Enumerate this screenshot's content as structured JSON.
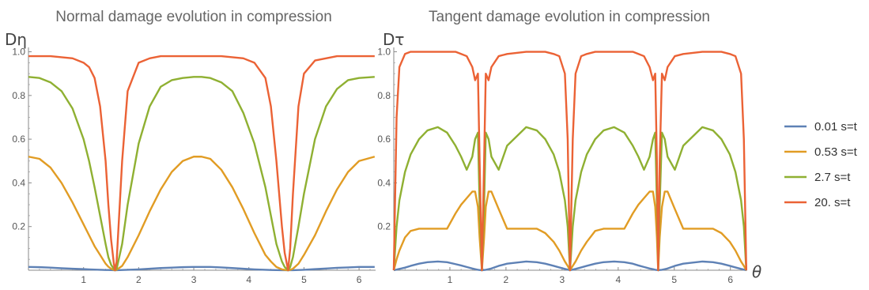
{
  "chart_data": [
    {
      "type": "line",
      "title": "Normal damage evolution in compression",
      "ylabel": "Dη",
      "xlabel": "",
      "xlim": [
        0,
        6.3
      ],
      "ylim": [
        0,
        1.02
      ],
      "xticks": [
        "1",
        "2",
        "3",
        "4",
        "5",
        "6"
      ],
      "yticks": [
        "0.2",
        "0.4",
        "0.6",
        "0.8",
        "1.0"
      ],
      "x": [
        0,
        0.2,
        0.4,
        0.6,
        0.8,
        1.0,
        1.1,
        1.2,
        1.3,
        1.4,
        1.45,
        1.5,
        1.55,
        1.5708,
        1.6,
        1.7,
        1.8,
        2.0,
        2.2,
        2.4,
        2.6,
        2.8,
        3.0,
        3.1416,
        3.3,
        3.5,
        3.7,
        3.9,
        4.1,
        4.3,
        4.4,
        4.5,
        4.6,
        4.65,
        4.7124,
        4.75,
        4.8,
        4.9,
        5.0,
        5.2,
        5.4,
        5.6,
        5.8,
        6.0,
        6.2832
      ],
      "series": [
        {
          "name": "0.01 s=t",
          "color": "#5e81b5",
          "values": [
            0.015,
            0.014,
            0.012,
            0.009,
            0.007,
            0.005,
            0.004,
            0.003,
            0.002,
            0.001,
            0.001,
            0.0005,
            0.0001,
            0,
            0.0001,
            0.001,
            0.002,
            0.004,
            0.007,
            0.01,
            0.012,
            0.014,
            0.015,
            0.015,
            0.015,
            0.013,
            0.01,
            0.007,
            0.004,
            0.002,
            0.001,
            0.0005,
            0.0002,
            0.0001,
            0,
            0.0001,
            0.0003,
            0.001,
            0.002,
            0.005,
            0.008,
            0.011,
            0.013,
            0.015,
            0.015
          ]
        },
        {
          "name": "0.53 s=t",
          "color": "#e19c24",
          "values": [
            0.52,
            0.51,
            0.47,
            0.4,
            0.31,
            0.21,
            0.16,
            0.11,
            0.07,
            0.03,
            0.016,
            0.007,
            0.002,
            0,
            0.002,
            0.02,
            0.06,
            0.16,
            0.27,
            0.37,
            0.45,
            0.5,
            0.52,
            0.52,
            0.51,
            0.46,
            0.38,
            0.28,
            0.17,
            0.07,
            0.04,
            0.015,
            0.004,
            0.002,
            0,
            0.002,
            0.007,
            0.03,
            0.07,
            0.16,
            0.27,
            0.37,
            0.45,
            0.5,
            0.52
          ]
        },
        {
          "name": "2.7 s=t",
          "color": "#8fb032",
          "values": [
            0.885,
            0.88,
            0.86,
            0.82,
            0.74,
            0.6,
            0.5,
            0.38,
            0.25,
            0.12,
            0.06,
            0.025,
            0.006,
            0,
            0.006,
            0.12,
            0.3,
            0.58,
            0.75,
            0.84,
            0.87,
            0.88,
            0.885,
            0.885,
            0.88,
            0.86,
            0.82,
            0.72,
            0.58,
            0.38,
            0.25,
            0.12,
            0.04,
            0.015,
            0,
            0.015,
            0.06,
            0.2,
            0.35,
            0.6,
            0.75,
            0.83,
            0.87,
            0.88,
            0.885
          ]
        },
        {
          "name": "20. s=t",
          "color": "#eb6235",
          "values": [
            0.98,
            0.98,
            0.98,
            0.975,
            0.97,
            0.95,
            0.93,
            0.88,
            0.75,
            0.5,
            0.3,
            0.14,
            0.03,
            0,
            0.04,
            0.5,
            0.82,
            0.95,
            0.97,
            0.98,
            0.98,
            0.98,
            0.98,
            0.98,
            0.98,
            0.98,
            0.975,
            0.97,
            0.95,
            0.88,
            0.75,
            0.5,
            0.2,
            0.08,
            0,
            0.1,
            0.35,
            0.75,
            0.9,
            0.96,
            0.97,
            0.98,
            0.98,
            0.98,
            0.98
          ]
        }
      ]
    },
    {
      "type": "line",
      "title": "Tangent damage evolution in compression",
      "ylabel": "Dτ",
      "xlabel": "θ",
      "xlim": [
        0,
        6.3
      ],
      "ylim": [
        0,
        1.02
      ],
      "xticks": [
        "1",
        "2",
        "3",
        "4",
        "5",
        "6"
      ],
      "yticks": [
        "0.2",
        "0.4",
        "0.6",
        "0.8",
        "1.0"
      ],
      "x": [
        0,
        0.05,
        0.1,
        0.2,
        0.3,
        0.45,
        0.6,
        0.7854,
        0.95,
        1.1,
        1.2,
        1.3,
        1.4,
        1.45,
        1.5,
        1.53,
        1.5708,
        1.61,
        1.64,
        1.69,
        1.74,
        1.87,
        2.02,
        2.36,
        2.55,
        2.7,
        2.85,
        2.95,
        3.05,
        3.1,
        3.1416,
        3.19,
        3.24,
        3.34,
        3.44,
        3.59,
        3.74,
        3.927,
        4.11,
        4.26,
        4.36,
        4.46,
        4.56,
        4.62,
        4.66,
        4.69,
        4.7124,
        4.74,
        4.78,
        4.83,
        4.88,
        5.01,
        5.16,
        5.5,
        5.69,
        5.84,
        5.99,
        6.09,
        6.19,
        6.24,
        6.2832
      ],
      "series": [
        {
          "name": "0.01 s=t",
          "color": "#5e81b5",
          "values": [
            0,
            0.003,
            0.006,
            0.012,
            0.02,
            0.03,
            0.037,
            0.04,
            0.037,
            0.028,
            0.022,
            0.015,
            0.008,
            0.005,
            0.002,
            0.001,
            0,
            0.001,
            0.002,
            0.005,
            0.008,
            0.02,
            0.03,
            0.04,
            0.037,
            0.03,
            0.02,
            0.013,
            0.006,
            0.003,
            0,
            0.003,
            0.006,
            0.013,
            0.02,
            0.03,
            0.037,
            0.04,
            0.037,
            0.03,
            0.022,
            0.015,
            0.008,
            0.005,
            0.002,
            0.001,
            0,
            0.001,
            0.002,
            0.005,
            0.008,
            0.02,
            0.03,
            0.04,
            0.037,
            0.03,
            0.02,
            0.013,
            0.006,
            0.003,
            0
          ]
        },
        {
          "name": "0.53 s=t",
          "color": "#e19c24",
          "values": [
            0,
            0.05,
            0.09,
            0.15,
            0.18,
            0.19,
            0.19,
            0.19,
            0.19,
            0.26,
            0.3,
            0.33,
            0.36,
            0.36,
            0.29,
            0.15,
            0,
            0.15,
            0.29,
            0.36,
            0.36,
            0.28,
            0.19,
            0.19,
            0.19,
            0.17,
            0.13,
            0.09,
            0.04,
            0.02,
            0,
            0.02,
            0.04,
            0.09,
            0.13,
            0.18,
            0.19,
            0.19,
            0.19,
            0.26,
            0.3,
            0.33,
            0.36,
            0.36,
            0.29,
            0.15,
            0,
            0.15,
            0.29,
            0.36,
            0.36,
            0.28,
            0.19,
            0.19,
            0.19,
            0.17,
            0.13,
            0.09,
            0.04,
            0.02,
            0
          ]
        },
        {
          "name": "2.7 s=t",
          "color": "#8fb032",
          "values": [
            0,
            0.2,
            0.32,
            0.45,
            0.53,
            0.6,
            0.64,
            0.655,
            0.63,
            0.57,
            0.52,
            0.46,
            0.52,
            0.6,
            0.63,
            0.3,
            0,
            0.3,
            0.63,
            0.6,
            0.52,
            0.46,
            0.57,
            0.655,
            0.64,
            0.6,
            0.53,
            0.45,
            0.32,
            0.2,
            0,
            0.2,
            0.32,
            0.45,
            0.53,
            0.6,
            0.64,
            0.655,
            0.63,
            0.57,
            0.52,
            0.46,
            0.52,
            0.6,
            0.63,
            0.3,
            0,
            0.3,
            0.63,
            0.6,
            0.52,
            0.46,
            0.57,
            0.655,
            0.64,
            0.6,
            0.53,
            0.45,
            0.32,
            0.2,
            0
          ]
        },
        {
          "name": "20. s=t",
          "color": "#eb6235",
          "values": [
            0,
            0.7,
            0.93,
            0.99,
            1.0,
            1.0,
            1.0,
            1.0,
            1.0,
            1.0,
            0.99,
            0.98,
            0.93,
            0.87,
            0.9,
            0.5,
            0,
            0.5,
            0.9,
            0.87,
            0.93,
            0.98,
            0.99,
            1.0,
            1.0,
            1.0,
            0.99,
            0.98,
            0.9,
            0.6,
            0,
            0.6,
            0.9,
            0.98,
            0.99,
            1.0,
            1.0,
            1.0,
            1.0,
            1.0,
            0.99,
            0.98,
            0.93,
            0.87,
            0.9,
            0.5,
            0,
            0.5,
            0.9,
            0.87,
            0.93,
            0.98,
            0.99,
            1.0,
            1.0,
            1.0,
            0.99,
            0.98,
            0.9,
            0.6,
            0
          ]
        }
      ]
    }
  ],
  "legend": [
    {
      "label": "0.01 s=t",
      "color": "#5e81b5"
    },
    {
      "label": "0.53 s=t",
      "color": "#e19c24"
    },
    {
      "label": "2.7 s=t",
      "color": "#8fb032"
    },
    {
      "label": "20. s=t",
      "color": "#eb6235"
    }
  ]
}
